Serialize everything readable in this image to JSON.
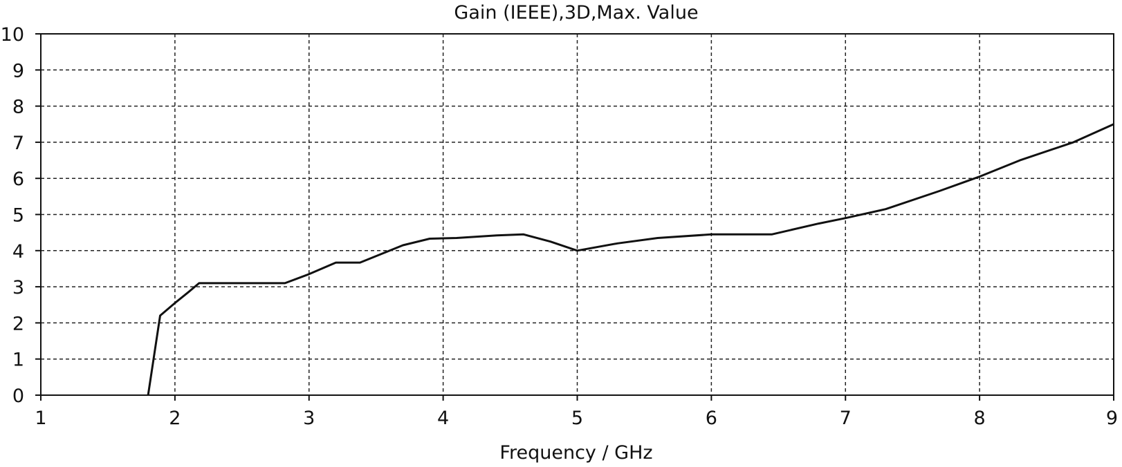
{
  "chart_data": {
    "type": "line",
    "title": "Gain (IEEE),3D,Max. Value",
    "xlabel": "Frequency / GHz",
    "ylabel": "",
    "xlim": [
      1,
      9
    ],
    "ylim": [
      0,
      10
    ],
    "x_ticks": [
      1,
      2,
      3,
      4,
      5,
      6,
      7,
      8,
      9
    ],
    "y_ticks": [
      0,
      1,
      2,
      3,
      4,
      5,
      6,
      7,
      8,
      9,
      10
    ],
    "grid": true,
    "grid_style": "dashed",
    "legend": "none",
    "line_color": "#111111",
    "series": [
      {
        "x": [
          1.8,
          1.89,
          2.0,
          2.1,
          2.18,
          2.5,
          2.82,
          3.0,
          3.2,
          3.38,
          3.7,
          3.9,
          4.1,
          4.4,
          4.6,
          4.8,
          5.0,
          5.3,
          5.6,
          6.0,
          6.45,
          6.8,
          7.0,
          7.3,
          7.7,
          8.0,
          8.3,
          8.7,
          9.0
        ],
        "y": [
          0.0,
          2.2,
          2.55,
          2.85,
          3.1,
          3.1,
          3.1,
          3.35,
          3.67,
          3.67,
          4.15,
          4.33,
          4.35,
          4.42,
          4.45,
          4.25,
          4.0,
          4.2,
          4.35,
          4.45,
          4.45,
          4.75,
          4.9,
          5.15,
          5.65,
          6.05,
          6.5,
          7.0,
          7.5
        ]
      }
    ]
  }
}
